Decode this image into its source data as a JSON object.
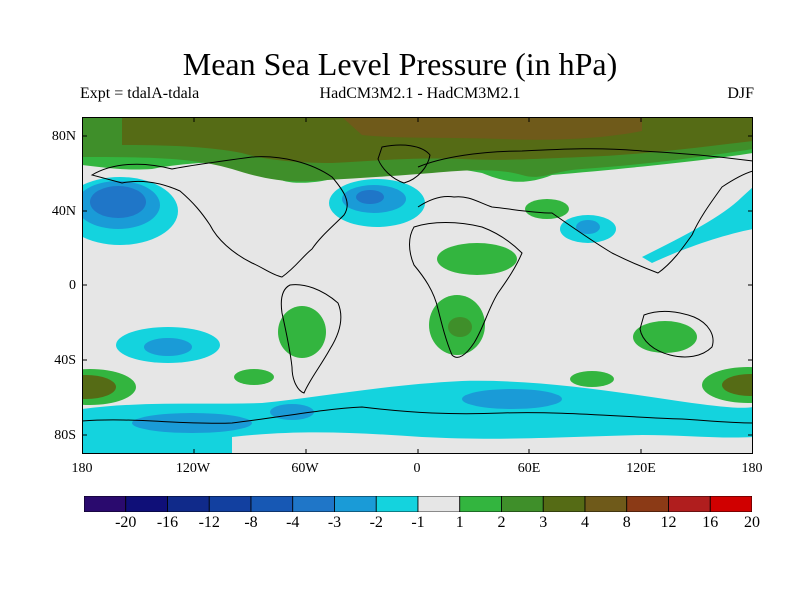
{
  "title": "Mean Sea Level Pressure (in hPa)",
  "subtitle_left": "Expt = tdalA-tdala",
  "subtitle_center": "HadCM3M2.1 - HadCM3M2.1",
  "subtitle_right": "DJF",
  "lat_labels": [
    "80N",
    "40N",
    "0",
    "40S",
    "80S"
  ],
  "lon_labels": [
    "180",
    "120W",
    "60W",
    "0",
    "60E",
    "120E",
    "180"
  ],
  "colorbar": {
    "labels": [
      "-20",
      "-16",
      "-12",
      "-8",
      "-4",
      "-3",
      "-2",
      "-1",
      "1",
      "2",
      "3",
      "4",
      "8",
      "12",
      "16",
      "20"
    ],
    "colors": [
      "#2a0a6e",
      "#0f0f78",
      "#102a8a",
      "#1240a0",
      "#1758b4",
      "#1f76c8",
      "#1a9bd7",
      "#14d3de",
      "#e6e6e6",
      "#33b53f",
      "#3f8f2a",
      "#556b15",
      "#6f5a1a",
      "#8b3a16",
      "#b01e1e",
      "#d00000"
    ]
  }
}
